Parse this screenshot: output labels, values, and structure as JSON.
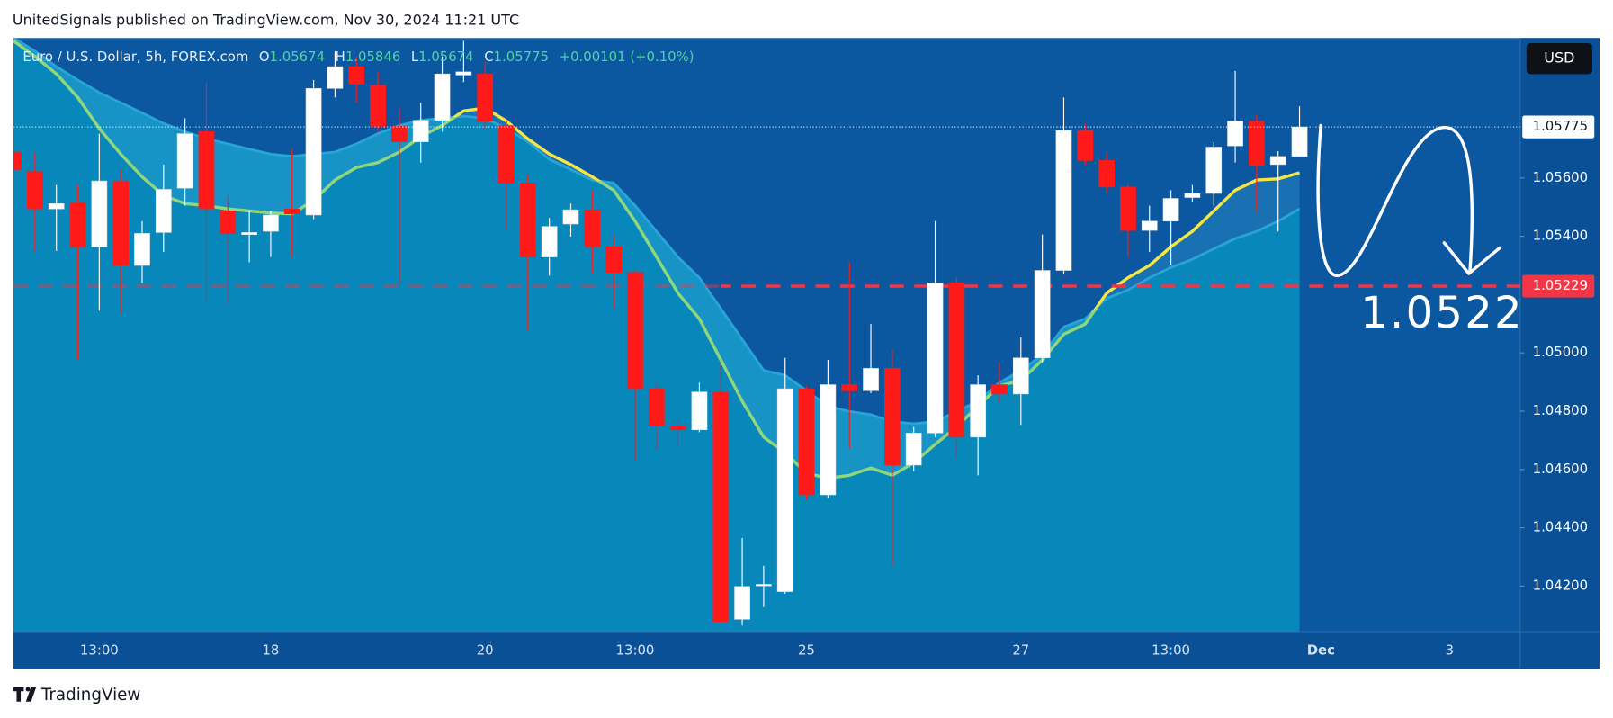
{
  "header": {
    "text": "UnitedSignals published on TradingView.com, Nov 30, 2024 11:21 UTC"
  },
  "footer": {
    "brand": "TradingView"
  },
  "chart_data": {
    "type": "candlestick",
    "symbol": "Euro / U.S. Dollar, 5h, FOREX.com",
    "ohlc_labels": [
      "O",
      "H",
      "L",
      "C"
    ],
    "change": "+0.00101 (+0.10%)",
    "currency": "USD",
    "open": [
      1.05689,
      1.05622,
      1.05494,
      1.05516,
      1.05364,
      1.0559,
      1.053,
      1.05413,
      1.05565,
      1.05759,
      1.05487,
      1.05406,
      1.05417,
      1.05494,
      1.05473,
      1.05907,
      1.05982,
      1.05918,
      1.05777,
      1.05724,
      1.05798,
      1.05953,
      1.05957,
      1.0578,
      1.05583,
      1.05329,
      1.05442,
      1.05491,
      1.05364,
      1.05276,
      1.04877,
      1.0475,
      1.04736,
      1.04866,
      1.04086,
      1.04202,
      1.04181,
      1.04877,
      1.04513,
      1.04891,
      1.0487,
      1.04947,
      1.04615,
      1.04725,
      1.0524,
      1.04711,
      1.04891,
      1.04859,
      1.04983,
      1.05283,
      1.05763,
      1.0566,
      1.05569,
      1.0542,
      1.05452,
      1.05533,
      1.05547,
      1.0571,
      1.05795,
      1.05646,
      1.05674
    ],
    "high": [
      1.05699,
      1.05689,
      1.05576,
      1.05576,
      1.05752,
      1.05629,
      1.05452,
      1.05646,
      1.05805,
      1.05929,
      1.0554,
      1.05487,
      1.05487,
      1.05699,
      1.05936,
      1.06035,
      1.06017,
      1.05964,
      1.0584,
      1.05858,
      1.06017,
      1.0607,
      1.05999,
      1.05795,
      1.05611,
      1.05463,
      1.05512,
      1.05558,
      1.05406,
      1.05286,
      1.04898,
      1.04771,
      1.04898,
      1.04968,
      1.04365,
      1.0427,
      1.04983,
      1.04887,
      1.04976,
      1.05311,
      1.05099,
      1.05011,
      1.04746,
      1.05452,
      1.05258,
      1.04923,
      1.04968,
      1.05053,
      1.05406,
      1.05876,
      1.05787,
      1.05689,
      1.05583,
      1.05505,
      1.05558,
      1.05576,
      1.05724,
      1.05967,
      1.05816,
      1.05692,
      1.05846
    ],
    "low": [
      1.05611,
      1.05346,
      1.0535,
      1.04976,
      1.05145,
      1.05134,
      1.0524,
      1.05346,
      1.05505,
      1.0517,
      1.0517,
      1.05311,
      1.05329,
      1.05329,
      1.05459,
      1.05876,
      1.05858,
      1.05759,
      1.05237,
      1.05653,
      1.05759,
      1.05929,
      1.0577,
      1.05424,
      1.05074,
      1.05265,
      1.05399,
      1.05276,
      1.05152,
      1.0463,
      1.04668,
      1.04675,
      1.04728,
      1.04072,
      1.04065,
      1.04128,
      1.04174,
      1.04495,
      1.04502,
      1.04672,
      1.04862,
      1.0427,
      1.04594,
      1.04711,
      1.0464,
      1.0458,
      1.04827,
      1.04753,
      1.04968,
      1.05272,
      1.05646,
      1.05547,
      1.05329,
      1.05346,
      1.053,
      1.05519,
      1.05505,
      1.05653,
      1.05484,
      1.05417,
      1.05674
    ],
    "close": [
      1.05629,
      1.05494,
      1.05512,
      1.05364,
      1.0559,
      1.053,
      1.0541,
      1.05561,
      1.05752,
      1.05494,
      1.0541,
      1.05413,
      1.05473,
      1.05477,
      1.05907,
      1.05982,
      1.05922,
      1.05777,
      1.05724,
      1.05798,
      1.05957,
      1.05964,
      1.05795,
      1.05583,
      1.05329,
      1.05434,
      1.05491,
      1.05364,
      1.05276,
      1.04877,
      1.0475,
      1.04736,
      1.04866,
      1.04079,
      1.04199,
      1.04206,
      1.04877,
      1.04513,
      1.04891,
      1.0487,
      1.04947,
      1.04615,
      1.04725,
      1.0524,
      1.04711,
      1.04891,
      1.04859,
      1.04983,
      1.05283,
      1.05763,
      1.0566,
      1.05569,
      1.0542,
      1.05452,
      1.0553,
      1.05547,
      1.05706,
      1.05795,
      1.05643,
      1.05674,
      1.05775
    ],
    "up_color": "#ffffff",
    "down_color": "#ff1a1a",
    "moving_averages": [
      {
        "color": "#8fd67c",
        "color_above": "#f4e542",
        "values": [
          1.0607,
          1.06017,
          1.05957,
          1.05876,
          1.0577,
          1.05682,
          1.05604,
          1.0554,
          1.05512,
          1.05505,
          1.05494,
          1.05487,
          1.0548,
          1.05477,
          1.05523,
          1.05593,
          1.05636,
          1.05653,
          1.05689,
          1.05742,
          1.0578,
          1.0583,
          1.0584,
          1.05795,
          1.05734,
          1.05682,
          1.05646,
          1.05604,
          1.05558,
          1.05452,
          1.05329,
          1.05205,
          1.05117,
          1.04976,
          1.04834,
          1.04711,
          1.04658,
          1.04587,
          1.0457,
          1.0458,
          1.04605,
          1.0458,
          1.04623,
          1.04686,
          1.04746,
          1.04817,
          1.04887,
          1.04905,
          1.04976,
          1.05064,
          1.05099,
          1.05205,
          1.05258,
          1.053,
          1.05364,
          1.05417,
          1.05487,
          1.05558,
          1.05593,
          1.05597,
          1.05618
        ]
      },
      {
        "color": "#29a3d8",
        "fill": "#0888ba",
        "values": [
          1.0608,
          1.06035,
          1.05982,
          1.05936,
          1.05893,
          1.05858,
          1.05823,
          1.05787,
          1.05759,
          1.05734,
          1.05717,
          1.05699,
          1.05682,
          1.05674,
          1.05682,
          1.05689,
          1.05717,
          1.05752,
          1.0578,
          1.05798,
          1.05805,
          1.05812,
          1.05805,
          1.0577,
          1.05724,
          1.05664,
          1.05629,
          1.05593,
          1.05583,
          1.05505,
          1.05417,
          1.05329,
          1.05258,
          1.05152,
          1.05046,
          1.0494,
          1.04923,
          1.0487,
          1.04817,
          1.04799,
          1.04788,
          1.04764,
          1.04757,
          1.04764,
          1.04799,
          1.04834,
          1.04898,
          1.0494,
          1.04993,
          1.05089,
          1.05117,
          1.05187,
          1.05216,
          1.05258,
          1.05293,
          1.05321,
          1.05357,
          1.05392,
          1.05417,
          1.05452,
          1.05494
        ]
      }
    ],
    "xlim": [
      0,
      70.3
    ],
    "xticks": [
      {
        "value": 4,
        "label": "13:00"
      },
      {
        "value": 12,
        "label": "18"
      },
      {
        "value": 22,
        "label": "20"
      },
      {
        "value": 29,
        "label": "13:00"
      },
      {
        "value": 37,
        "label": "25"
      },
      {
        "value": 47,
        "label": "27"
      },
      {
        "value": 54,
        "label": "13:00"
      },
      {
        "value": 61,
        "label": "Dec"
      },
      {
        "value": 67,
        "label": "3"
      }
    ],
    "ylim": [
      1.04044,
      1.0608
    ],
    "yticks": [
      {
        "value": 1.056,
        "label": "1.05600"
      },
      {
        "value": 1.054,
        "label": "1.05400"
      },
      {
        "value": 1.05,
        "label": "1.05000"
      },
      {
        "value": 1.048,
        "label": "1.04800"
      },
      {
        "value": 1.046,
        "label": "1.04600"
      },
      {
        "value": 1.044,
        "label": "1.04400"
      },
      {
        "value": 1.042,
        "label": "1.04200"
      }
    ],
    "price_line": {
      "value": 1.05229,
      "color": "#f23645"
    },
    "annotation": "1.0522"
  }
}
